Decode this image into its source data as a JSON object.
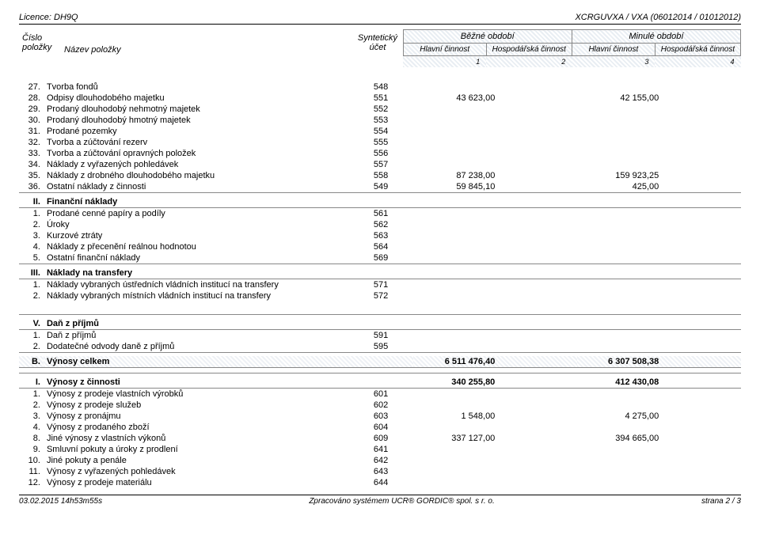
{
  "top": {
    "licence_label": "Licence:",
    "licence_value": "DH9Q",
    "docid": "XCRGUVXA / VXA (06012014 / 01012012)"
  },
  "header": {
    "cislo": "Číslo",
    "polozky": "položky",
    "nazev": "Název položky",
    "synt": "Syntetický",
    "ucet": "účet",
    "bezne": "Běžné období",
    "minule": "Minulé období",
    "hlavni": "Hlavní činnost",
    "hosp": "Hospodářská činnost",
    "n1": "1",
    "n2": "2",
    "n3": "3",
    "n4": "4"
  },
  "rows_a": [
    {
      "n": "27.",
      "name": "Tvorba fondů",
      "ucet": "548"
    },
    {
      "n": "28.",
      "name": "Odpisy dlouhodobého majetku",
      "ucet": "551",
      "h1": "43 623,00",
      "h3": "42 155,00"
    },
    {
      "n": "29.",
      "name": "Prodaný dlouhodobý nehmotný majetek",
      "ucet": "552"
    },
    {
      "n": "30.",
      "name": "Prodaný dlouhodobý hmotný majetek",
      "ucet": "553"
    },
    {
      "n": "31.",
      "name": "Prodané pozemky",
      "ucet": "554"
    },
    {
      "n": "32.",
      "name": "Tvorba a zúčtování rezerv",
      "ucet": "555"
    },
    {
      "n": "33.",
      "name": "Tvorba a zúčtování opravných položek",
      "ucet": "556"
    },
    {
      "n": "34.",
      "name": "Náklady z vyřazených pohledávek",
      "ucet": "557"
    },
    {
      "n": "35.",
      "name": "Náklady z drobného dlouhodobého majetku",
      "ucet": "558",
      "h1": "87 238,00",
      "h3": "159 923,25"
    },
    {
      "n": "36.",
      "name": "Ostatní náklady z činnosti",
      "ucet": "549",
      "h1": "59 845,10",
      "h3": "425,00"
    }
  ],
  "sec_II": {
    "roman": "II.",
    "label": "Finanční náklady"
  },
  "rows_b": [
    {
      "n": "1.",
      "name": "Prodané cenné papíry a podíly",
      "ucet": "561"
    },
    {
      "n": "2.",
      "name": "Úroky",
      "ucet": "562"
    },
    {
      "n": "3.",
      "name": "Kurzové ztráty",
      "ucet": "563"
    },
    {
      "n": "4.",
      "name": "Náklady z přecenění reálnou hodnotou",
      "ucet": "564"
    },
    {
      "n": "5.",
      "name": "Ostatní finanční náklady",
      "ucet": "569"
    }
  ],
  "sec_III": {
    "roman": "III.",
    "label": "Náklady na transfery"
  },
  "rows_c": [
    {
      "n": "1.",
      "name": "Náklady vybraných ústředních vládních institucí na transfery",
      "ucet": "571"
    },
    {
      "n": "2.",
      "name": "Náklady vybraných místních vládních institucí na transfery",
      "ucet": "572"
    }
  ],
  "sec_V": {
    "roman": "V.",
    "label": "Daň z příjmů"
  },
  "rows_d": [
    {
      "n": "1.",
      "name": "Daň z příjmů",
      "ucet": "591"
    },
    {
      "n": "2.",
      "name": "Dodatečné odvody daně z příjmů",
      "ucet": "595"
    }
  ],
  "big_B": {
    "roman": "B.",
    "label": "Výnosy celkem",
    "h1": "6 511 476,40",
    "h3": "6 307 508,38"
  },
  "sec_I": {
    "roman": "I.",
    "label": "Výnosy z činnosti",
    "h1": "340 255,80",
    "h3": "412 430,08"
  },
  "rows_e": [
    {
      "n": "1.",
      "name": "Výnosy z prodeje vlastních výrobků",
      "ucet": "601"
    },
    {
      "n": "2.",
      "name": "Výnosy z prodeje služeb",
      "ucet": "602"
    },
    {
      "n": "3.",
      "name": "Výnosy z pronájmu",
      "ucet": "603",
      "h1": "1 548,00",
      "h3": "4 275,00"
    },
    {
      "n": "4.",
      "name": "Výnosy z prodaného zboží",
      "ucet": "604"
    },
    {
      "n": "8.",
      "name": "Jiné výnosy z vlastních výkonů",
      "ucet": "609",
      "h1": "337 127,00",
      "h3": "394 665,00"
    },
    {
      "n": "9.",
      "name": "Smluvní pokuty a úroky z prodlení",
      "ucet": "641"
    },
    {
      "n": "10.",
      "name": "Jiné pokuty a penále",
      "ucet": "642"
    },
    {
      "n": "11.",
      "name": "Výnosy z vyřazených pohledávek",
      "ucet": "643"
    },
    {
      "n": "12.",
      "name": "Výnosy z prodeje materiálu",
      "ucet": "644"
    }
  ],
  "footer": {
    "left": "03.02.2015 14h53m55s",
    "center": "Zpracováno systémem UCR® GORDIC® spol. s r. o.",
    "right": "strana 2 / 3"
  }
}
